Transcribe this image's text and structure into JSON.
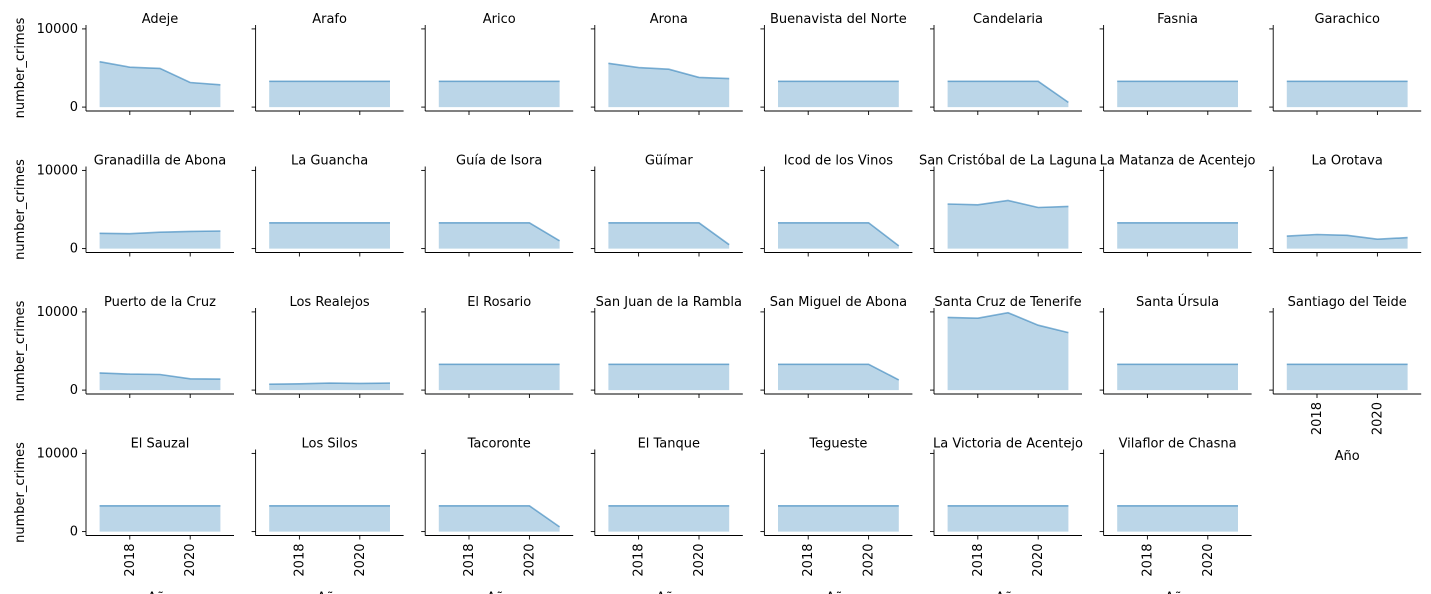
{
  "chart_data": {
    "type": "area",
    "title": "",
    "xlabel": "Año",
    "ylabel": "number_crimes",
    "x": [
      2017,
      2018,
      2019,
      2020,
      2021
    ],
    "xlim": [
      2016.55,
      2021.45
    ],
    "ylim": [
      -500,
      10500
    ],
    "x_ticks": [
      2018,
      2020
    ],
    "y_ticks": [
      0,
      10000
    ],
    "grid": false,
    "color": "#1f77b4",
    "panels": [
      {
        "name": "Adeje",
        "values": [
          5800,
          5100,
          4950,
          3150,
          2850
        ]
      },
      {
        "name": "Arafo",
        "values": [
          3300,
          3300,
          3300,
          3300,
          3300
        ]
      },
      {
        "name": "Arico",
        "values": [
          3300,
          3300,
          3300,
          3300,
          3300
        ]
      },
      {
        "name": "Arona",
        "values": [
          5600,
          5050,
          4850,
          3800,
          3650
        ]
      },
      {
        "name": "Buenavista del Norte",
        "values": [
          3300,
          3300,
          3300,
          3300,
          3300
        ]
      },
      {
        "name": "Candelaria",
        "values": [
          3300,
          3300,
          3300,
          3300,
          600
        ]
      },
      {
        "name": "Fasnia",
        "values": [
          3300,
          3300,
          3300,
          3300,
          3300
        ]
      },
      {
        "name": "Garachico",
        "values": [
          3300,
          3300,
          3300,
          3300,
          3300
        ]
      },
      {
        "name": "Granadilla de Abona",
        "values": [
          1950,
          1900,
          2100,
          2200,
          2250
        ]
      },
      {
        "name": "La Guancha",
        "values": [
          3300,
          3300,
          3300,
          3300,
          3300
        ]
      },
      {
        "name": "Guía de Isora",
        "values": [
          3300,
          3300,
          3300,
          3300,
          1000
        ]
      },
      {
        "name": "Güímar",
        "values": [
          3300,
          3300,
          3300,
          3300,
          500
        ]
      },
      {
        "name": "Icod de los Vinos",
        "values": [
          3300,
          3300,
          3300,
          3300,
          350
        ]
      },
      {
        "name": "San Cristóbal de La Laguna",
        "values": [
          5700,
          5600,
          6150,
          5250,
          5400
        ]
      },
      {
        "name": "La Matanza de Acentejo",
        "values": [
          3300,
          3300,
          3300,
          3300,
          3300
        ]
      },
      {
        "name": "La Orotava",
        "values": [
          1600,
          1800,
          1700,
          1200,
          1400
        ]
      },
      {
        "name": "Puerto de la Cruz",
        "values": [
          2200,
          2050,
          2000,
          1450,
          1400
        ]
      },
      {
        "name": "Los Realejos",
        "values": [
          750,
          800,
          900,
          850,
          900
        ]
      },
      {
        "name": "El Rosario",
        "values": [
          3300,
          3300,
          3300,
          3300,
          3300
        ]
      },
      {
        "name": "San Juan de la Rambla",
        "values": [
          3300,
          3300,
          3300,
          3300,
          3300
        ]
      },
      {
        "name": "San Miguel de Abona",
        "values": [
          3300,
          3300,
          3300,
          3300,
          1300
        ]
      },
      {
        "name": "Santa Cruz de Tenerife",
        "values": [
          9300,
          9200,
          9900,
          8300,
          7350
        ]
      },
      {
        "name": "Santa Úrsula",
        "values": [
          3300,
          3300,
          3300,
          3300,
          3300
        ]
      },
      {
        "name": "Santiago del Teide",
        "values": [
          3300,
          3300,
          3300,
          3300,
          3300
        ]
      },
      {
        "name": "El Sauzal",
        "values": [
          3300,
          3300,
          3300,
          3300,
          3300
        ]
      },
      {
        "name": "Los Silos",
        "values": [
          3300,
          3300,
          3300,
          3300,
          3300
        ]
      },
      {
        "name": "Tacoronte",
        "values": [
          3300,
          3300,
          3300,
          3300,
          600
        ]
      },
      {
        "name": "El Tanque",
        "values": [
          3300,
          3300,
          3300,
          3300,
          3300
        ]
      },
      {
        "name": "Tegueste",
        "values": [
          3300,
          3300,
          3300,
          3300,
          3300
        ]
      },
      {
        "name": "La Victoria de Acentejo",
        "values": [
          3300,
          3300,
          3300,
          3300,
          3300
        ]
      },
      {
        "name": "Vilaflor de Chasna",
        "values": [
          3300,
          3300,
          3300,
          3300,
          3300
        ]
      }
    ]
  }
}
